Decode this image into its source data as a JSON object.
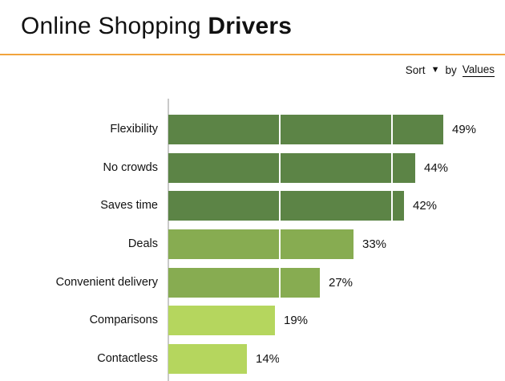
{
  "header": {
    "title_regular": "Online Shopping ",
    "title_bold": "Drivers",
    "accent_color": "#F1A33C"
  },
  "sort_control": {
    "sort_label": "Sort",
    "dropdown_icon": "caret-down-icon",
    "by_label": "by",
    "value_label": "Values"
  },
  "chart_data": {
    "type": "bar",
    "orientation": "horizontal",
    "title": "Online Shopping Drivers",
    "categories": [
      "Flexibility",
      "No crowds",
      "Saves time",
      "Deals",
      "Convenient delivery",
      "Comparisons",
      "Contactless"
    ],
    "values": [
      49,
      44,
      42,
      33,
      27,
      19,
      14
    ],
    "value_labels": [
      "49%",
      "44%",
      "42%",
      "33%",
      "27%",
      "19%",
      "14%"
    ],
    "bar_colors": [
      "#5C8446",
      "#5C8446",
      "#5C8446",
      "#87AC51",
      "#87AC51",
      "#B5D65E",
      "#B5D65E"
    ],
    "xlim": [
      0,
      50
    ],
    "gridline_values": [
      20,
      40
    ],
    "gridline_color": "#FFFFFF",
    "axis_color": "#C9C9C9",
    "legend": "none",
    "sort_order": "descending"
  }
}
